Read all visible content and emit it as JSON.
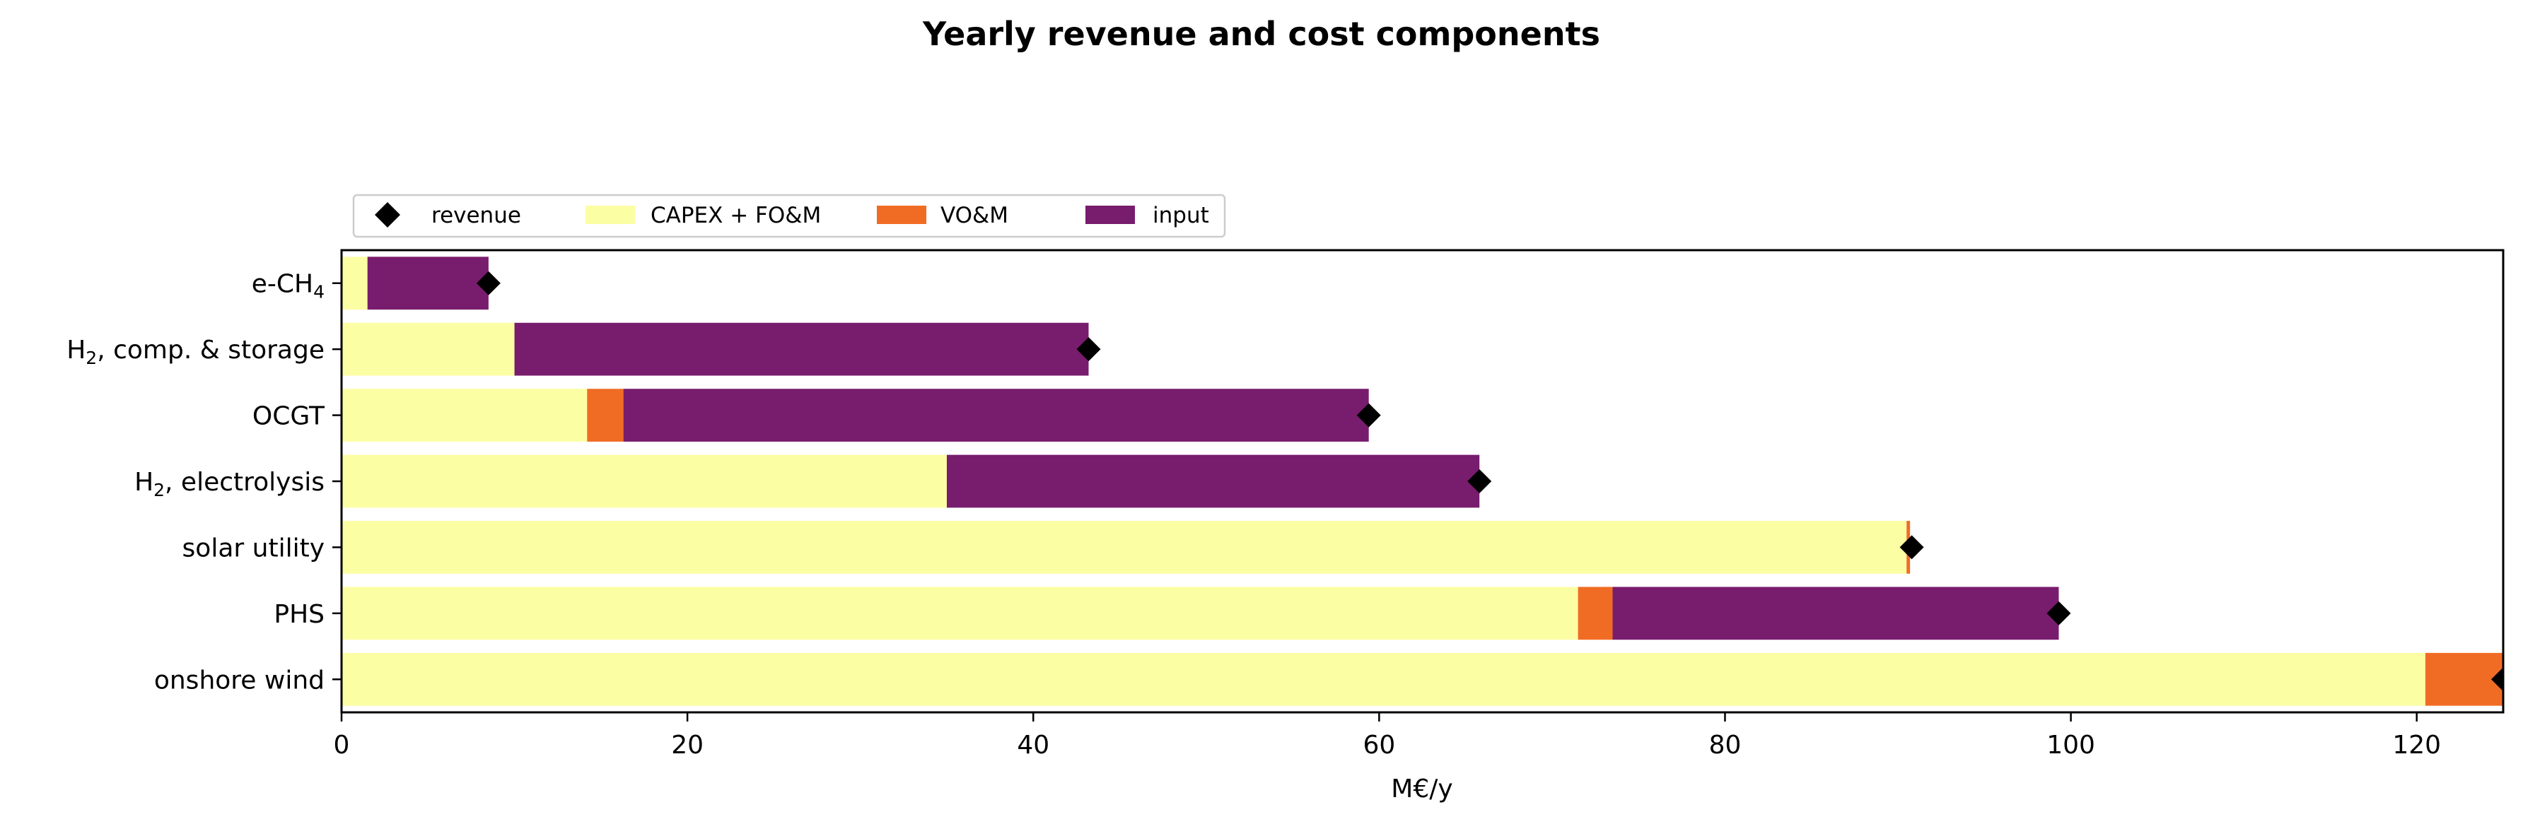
{
  "chart_data": {
    "type": "bar",
    "orientation": "horizontal",
    "stacked": true,
    "title": "Yearly revenue and cost components",
    "xlabel": "M€/y",
    "ylabel": "",
    "xlim": [
      0,
      125
    ],
    "xticks": [
      0,
      20,
      40,
      60,
      80,
      100,
      120
    ],
    "grid": false,
    "legend_position": "top-left",
    "categories": [
      {
        "base": "e-CH",
        "sub": "4",
        "rest": ""
      },
      {
        "base": "H",
        "sub": "2",
        "rest": ", comp. & storage"
      },
      {
        "base": "OCGT",
        "sub": "",
        "rest": ""
      },
      {
        "base": "H",
        "sub": "2",
        "rest": ", electrolysis"
      },
      {
        "base": "solar utility",
        "sub": "",
        "rest": ""
      },
      {
        "base": "PHS",
        "sub": "",
        "rest": ""
      },
      {
        "base": "onshore wind",
        "sub": "",
        "rest": ""
      }
    ],
    "series": [
      {
        "name": "CAPEX + FO&M",
        "color": "#fcfea4",
        "values": [
          1.5,
          10.0,
          14.2,
          35.0,
          90.5,
          71.5,
          120.5
        ]
      },
      {
        "name": "VO&M",
        "color": "#f06c24",
        "values": [
          0.0,
          0.0,
          2.1,
          0.0,
          0.2,
          2.0,
          4.5
        ]
      },
      {
        "name": "input",
        "color": "#781c6d",
        "values": [
          7.0,
          33.2,
          43.1,
          30.8,
          0.0,
          25.8,
          0.0
        ]
      }
    ],
    "revenue": {
      "name": "revenue",
      "marker": "diamond",
      "color": "#000000",
      "values": [
        8.5,
        43.2,
        59.4,
        65.8,
        90.8,
        99.3,
        125.0
      ]
    }
  }
}
